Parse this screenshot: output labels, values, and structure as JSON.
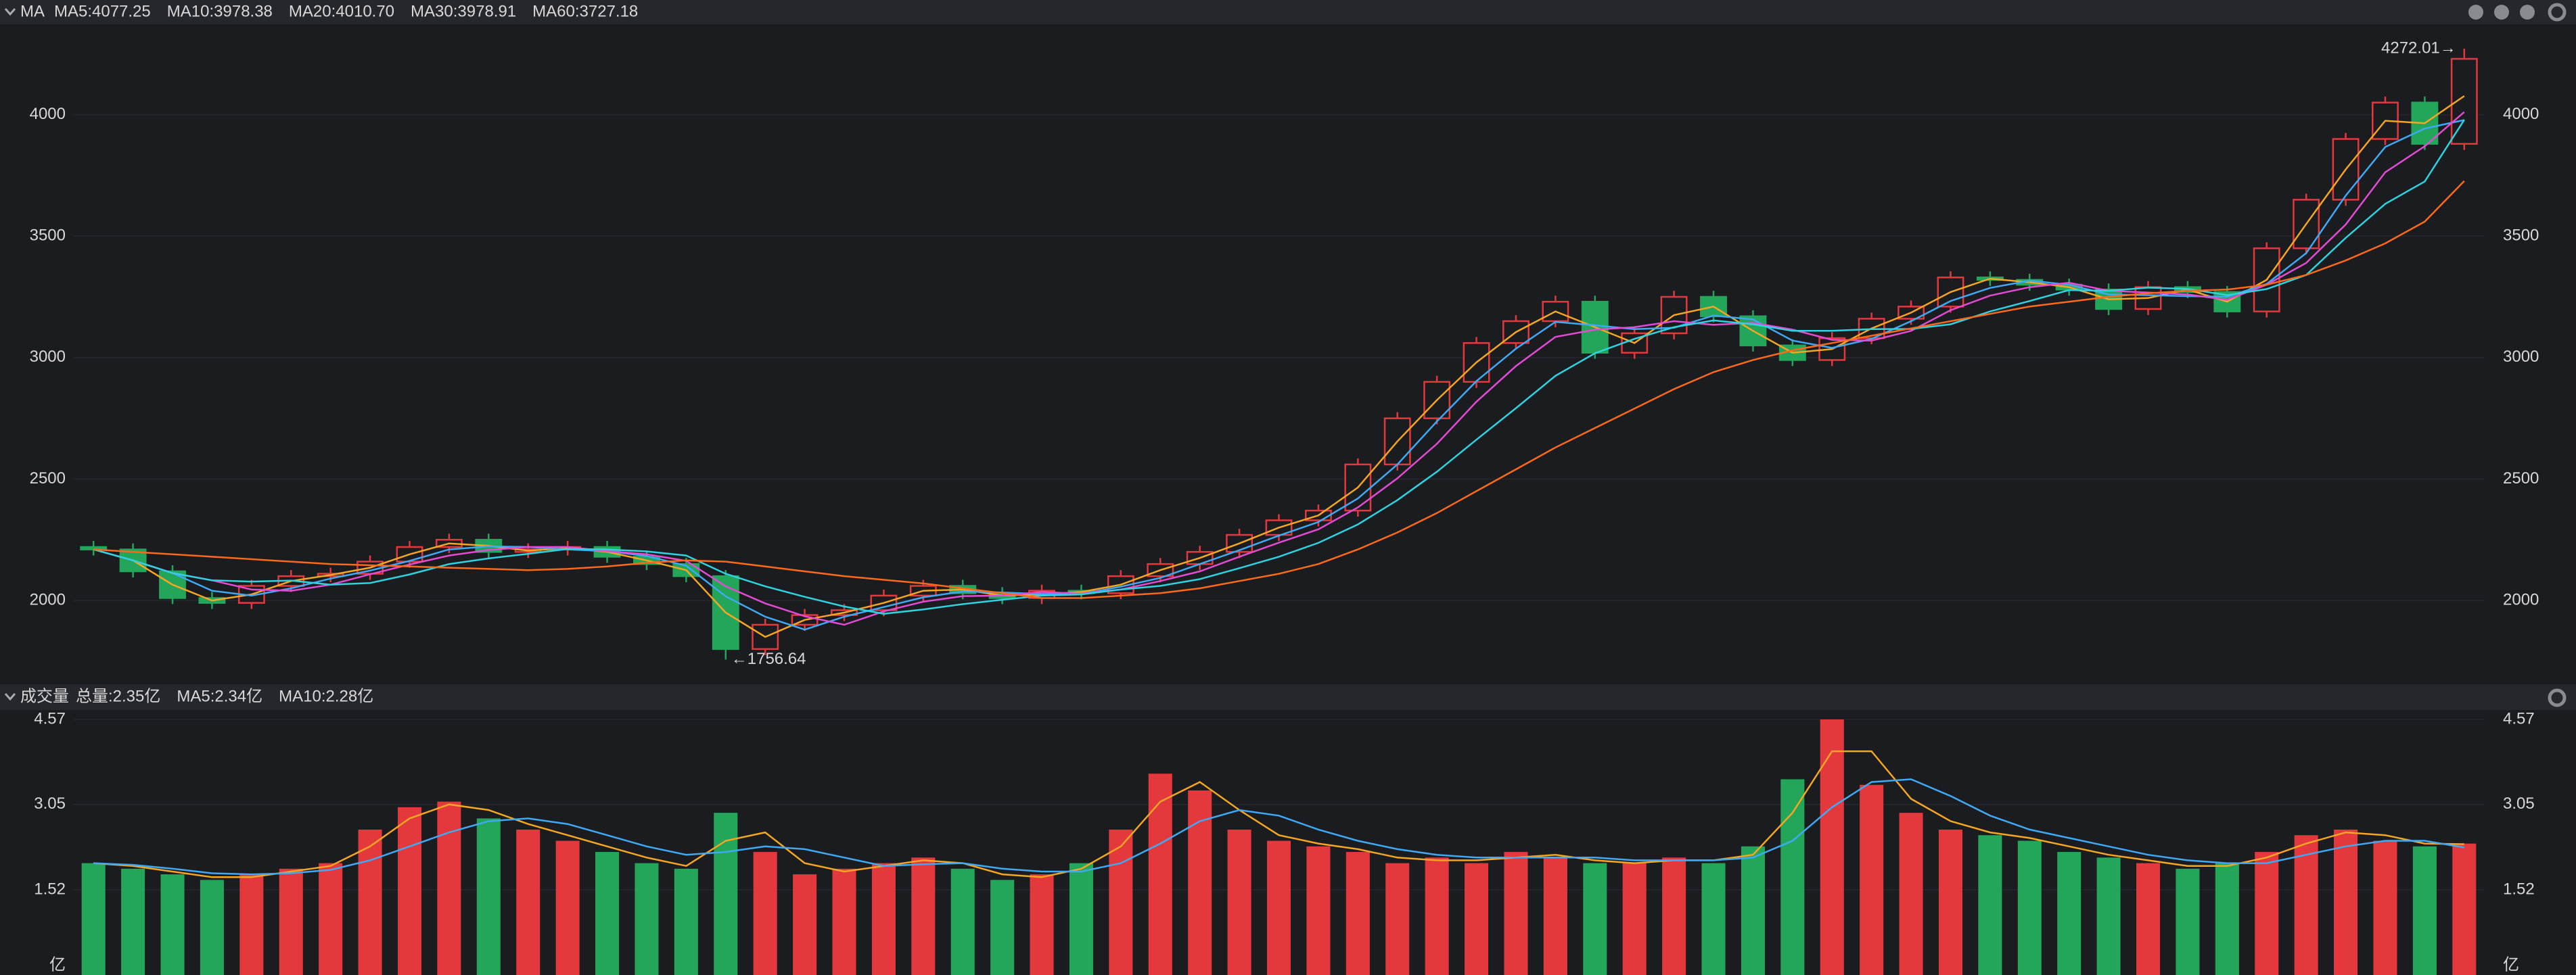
{
  "header": {
    "indicator": "MA"
  },
  "chart_data": [
    {
      "type": "candlestick",
      "up_color": "#e4393c",
      "down_color": "#23a65a",
      "ylim": [
        1655,
        4372
      ],
      "yticks": [
        2000,
        2500,
        3000,
        3500,
        4000
      ],
      "grid": true,
      "open": [
        2220,
        2210,
        2120,
        2010,
        1990,
        2060,
        2100,
        2110,
        2160,
        2220,
        2250,
        2200,
        2210,
        2220,
        2180,
        2150,
        2100,
        1800,
        1900,
        1940,
        1960,
        2020,
        2060,
        2030,
        2010,
        2040,
        2030,
        2100,
        2150,
        2200,
        2270,
        2330,
        2370,
        2560,
        2750,
        2900,
        3060,
        3150,
        3230,
        3020,
        3100,
        3250,
        3170,
        3050,
        2990,
        3080,
        3160,
        3210,
        3330,
        3320,
        3300,
        3280,
        3200,
        3290,
        3270,
        3190,
        3450,
        3650,
        3900,
        4050,
        3880
      ],
      "high": [
        2245,
        2235,
        2145,
        2035,
        2085,
        2125,
        2135,
        2185,
        2245,
        2275,
        2275,
        2235,
        2245,
        2245,
        2205,
        2175,
        2125,
        1925,
        1965,
        1985,
        2045,
        2085,
        2085,
        2055,
        2065,
        2065,
        2125,
        2175,
        2225,
        2295,
        2355,
        2395,
        2585,
        2775,
        2925,
        3085,
        3175,
        3255,
        3255,
        3125,
        3275,
        3275,
        3195,
        3075,
        3105,
        3185,
        3235,
        3355,
        3355,
        3345,
        3325,
        3305,
        3315,
        3315,
        3295,
        3475,
        3675,
        3925,
        4075,
        4075,
        4272.01
      ],
      "low": [
        2185,
        2095,
        1985,
        1965,
        1965,
        2035,
        2075,
        2085,
        2135,
        2195,
        2175,
        2175,
        2185,
        2155,
        2125,
        2075,
        1756.64,
        1775,
        1875,
        1915,
        1935,
        1995,
        2005,
        1985,
        1985,
        2005,
        2005,
        2075,
        2125,
        2175,
        2245,
        2305,
        2345,
        2535,
        2725,
        2875,
        3035,
        3125,
        2995,
        2995,
        3075,
        3145,
        3025,
        2965,
        2965,
        3055,
        3135,
        3185,
        3295,
        3275,
        3255,
        3175,
        3175,
        3245,
        3165,
        3165,
        3425,
        3625,
        3875,
        3855,
        3855
      ],
      "close": [
        2210,
        2120,
        2010,
        1990,
        2060,
        2100,
        2110,
        2160,
        2220,
        2250,
        2200,
        2210,
        2220,
        2180,
        2150,
        2100,
        1800,
        1900,
        1940,
        1960,
        2020,
        2060,
        2030,
        2010,
        2040,
        2030,
        2100,
        2150,
        2200,
        2270,
        2330,
        2370,
        2560,
        2750,
        2900,
        3060,
        3150,
        3230,
        3020,
        3100,
        3250,
        3170,
        3050,
        2990,
        3080,
        3160,
        3210,
        3330,
        3320,
        3300,
        3280,
        3200,
        3290,
        3270,
        3190,
        3450,
        3650,
        3900,
        4050,
        3880,
        4230
      ],
      "lines": [
        {
          "name": "MA5:4077.25",
          "color": "#f5a623",
          "values": [
            2210,
            2165,
            2065,
            2000,
            2025,
            2080,
            2105,
            2135,
            2190,
            2235,
            2225,
            2205,
            2215,
            2200,
            2165,
            2125,
            1950,
            1850,
            1920,
            1950,
            1990,
            2040,
            2045,
            2020,
            2025,
            2035,
            2065,
            2125,
            2175,
            2235,
            2300,
            2350,
            2465,
            2655,
            2825,
            2980,
            3105,
            3190,
            3125,
            3060,
            3175,
            3210,
            3110,
            3020,
            3035,
            3120,
            3185,
            3270,
            3325,
            3310,
            3290,
            3240,
            3245,
            3280,
            3230,
            3320,
            3550,
            3775,
            3975,
            3965,
            4077
          ]
        },
        {
          "name": "MA10:3978.38",
          "color": "#3fa9f5",
          "values": [
            2210,
            2165,
            2113,
            2040,
            2020,
            2050,
            2090,
            2123,
            2163,
            2210,
            2223,
            2220,
            2210,
            2203,
            2183,
            2143,
            2017,
            1933,
            1880,
            1933,
            1973,
            2013,
            2037,
            2033,
            2027,
            2027,
            2057,
            2093,
            2150,
            2207,
            2267,
            2323,
            2420,
            2560,
            2737,
            2903,
            3037,
            3147,
            3133,
            3117,
            3123,
            3173,
            3157,
            3070,
            3040,
            3077,
            3150,
            3233,
            3287,
            3317,
            3300,
            3260,
            3257,
            3253,
            3250,
            3303,
            3430,
            3667,
            3867,
            3943,
            3978
          ]
        },
        {
          "name": "MA20:4010.70",
          "color": "#e44bd4",
          "values": [
            2210,
            2165,
            2113,
            2083,
            2045,
            2040,
            2065,
            2108,
            2148,
            2185,
            2208,
            2220,
            2220,
            2203,
            2190,
            2163,
            2058,
            1988,
            1935,
            1900,
            1955,
            1995,
            2018,
            2020,
            2035,
            2028,
            2045,
            2080,
            2120,
            2180,
            2238,
            2293,
            2383,
            2503,
            2645,
            2818,
            2965,
            3085,
            3115,
            3125,
            3150,
            3135,
            3143,
            3115,
            3073,
            3070,
            3110,
            3195,
            3255,
            3290,
            3308,
            3275,
            3268,
            3260,
            3238,
            3300,
            3390,
            3548,
            3763,
            3870,
            4011
          ]
        },
        {
          "name": "MA30:3978.91",
          "color": "#2fd3e0",
          "values": [
            2210,
            2165,
            2113,
            2083,
            2078,
            2082,
            2065,
            2072,
            2107,
            2150,
            2173,
            2192,
            2212,
            2210,
            2202,
            2185,
            2110,
            2058,
            2015,
            1975,
            1945,
            1963,
            1985,
            2003,
            2020,
            2025,
            2045,
            2060,
            2088,
            2133,
            2180,
            2237,
            2313,
            2413,
            2530,
            2662,
            2792,
            2925,
            3018,
            3077,
            3125,
            3153,
            3137,
            3110,
            3110,
            3117,
            3118,
            3137,
            3190,
            3233,
            3278,
            3275,
            3288,
            3283,
            3257,
            3282,
            3340,
            3493,
            3633,
            3725,
            3979
          ]
        },
        {
          "name": "MA60:3727.18",
          "color": "#ff6a1a",
          "values": [
            2210,
            2200,
            2190,
            2180,
            2170,
            2160,
            2150,
            2145,
            2140,
            2135,
            2130,
            2125,
            2130,
            2140,
            2155,
            2165,
            2160,
            2140,
            2120,
            2100,
            2085,
            2070,
            2050,
            2030,
            2010,
            2010,
            2020,
            2030,
            2050,
            2080,
            2110,
            2150,
            2210,
            2280,
            2360,
            2450,
            2540,
            2630,
            2710,
            2790,
            2870,
            2940,
            2990,
            3030,
            3060,
            3090,
            3120,
            3150,
            3180,
            3210,
            3230,
            3250,
            3265,
            3275,
            3280,
            3300,
            3340,
            3400,
            3470,
            3560,
            3727
          ]
        }
      ],
      "annotations": [
        "4272.01→",
        "←1756.64"
      ]
    },
    {
      "type": "bar",
      "title": "成交量",
      "summary": "总量:2.35亿",
      "summary_color": "#e4393c",
      "unit": "亿",
      "ylim": [
        0,
        4.57
      ],
      "yticks": [
        1.52,
        3.05,
        4.57
      ],
      "values": [
        2.0,
        1.9,
        1.8,
        1.7,
        1.8,
        1.9,
        2.0,
        2.6,
        3.0,
        3.1,
        2.8,
        2.6,
        2.4,
        2.2,
        2.0,
        1.9,
        2.9,
        2.2,
        1.8,
        1.9,
        2.0,
        2.1,
        1.9,
        1.7,
        1.8,
        2.0,
        2.6,
        3.6,
        3.3,
        2.6,
        2.4,
        2.3,
        2.2,
        2.0,
        2.1,
        2.0,
        2.2,
        2.1,
        2.0,
        2.0,
        2.1,
        2.0,
        2.3,
        3.5,
        4.57,
        3.4,
        2.9,
        2.6,
        2.5,
        2.4,
        2.2,
        2.1,
        2.0,
        1.9,
        2.0,
        2.2,
        2.5,
        2.6,
        2.4,
        2.3,
        2.35
      ],
      "lines": [
        {
          "name": "MA5:2.34亿",
          "color": "#f5a623",
          "values": [
            2.0,
            1.95,
            1.85,
            1.75,
            1.75,
            1.85,
            1.95,
            2.3,
            2.8,
            3.05,
            2.95,
            2.7,
            2.5,
            2.3,
            2.1,
            1.95,
            2.4,
            2.55,
            2.0,
            1.85,
            1.95,
            2.05,
            2.0,
            1.8,
            1.75,
            1.9,
            2.3,
            3.1,
            3.45,
            2.95,
            2.5,
            2.35,
            2.25,
            2.1,
            2.05,
            2.05,
            2.1,
            2.15,
            2.05,
            2.0,
            2.05,
            2.05,
            2.15,
            2.9,
            4.0,
            4.0,
            3.15,
            2.75,
            2.55,
            2.45,
            2.3,
            2.15,
            2.05,
            1.95,
            1.95,
            2.1,
            2.35,
            2.55,
            2.5,
            2.35,
            2.34
          ]
        },
        {
          "name": "MA10:2.28亿",
          "color": "#3fa9f5",
          "values": [
            2.0,
            1.97,
            1.9,
            1.82,
            1.8,
            1.82,
            1.88,
            2.05,
            2.3,
            2.55,
            2.75,
            2.8,
            2.7,
            2.5,
            2.3,
            2.15,
            2.2,
            2.3,
            2.25,
            2.1,
            1.95,
            1.98,
            2.0,
            1.9,
            1.85,
            1.85,
            2.0,
            2.35,
            2.75,
            2.95,
            2.85,
            2.6,
            2.4,
            2.25,
            2.15,
            2.1,
            2.1,
            2.1,
            2.1,
            2.05,
            2.05,
            2.05,
            2.1,
            2.4,
            3.0,
            3.45,
            3.5,
            3.2,
            2.85,
            2.6,
            2.45,
            2.3,
            2.15,
            2.05,
            2.0,
            2.0,
            2.15,
            2.3,
            2.4,
            2.4,
            2.28
          ]
        }
      ]
    }
  ]
}
